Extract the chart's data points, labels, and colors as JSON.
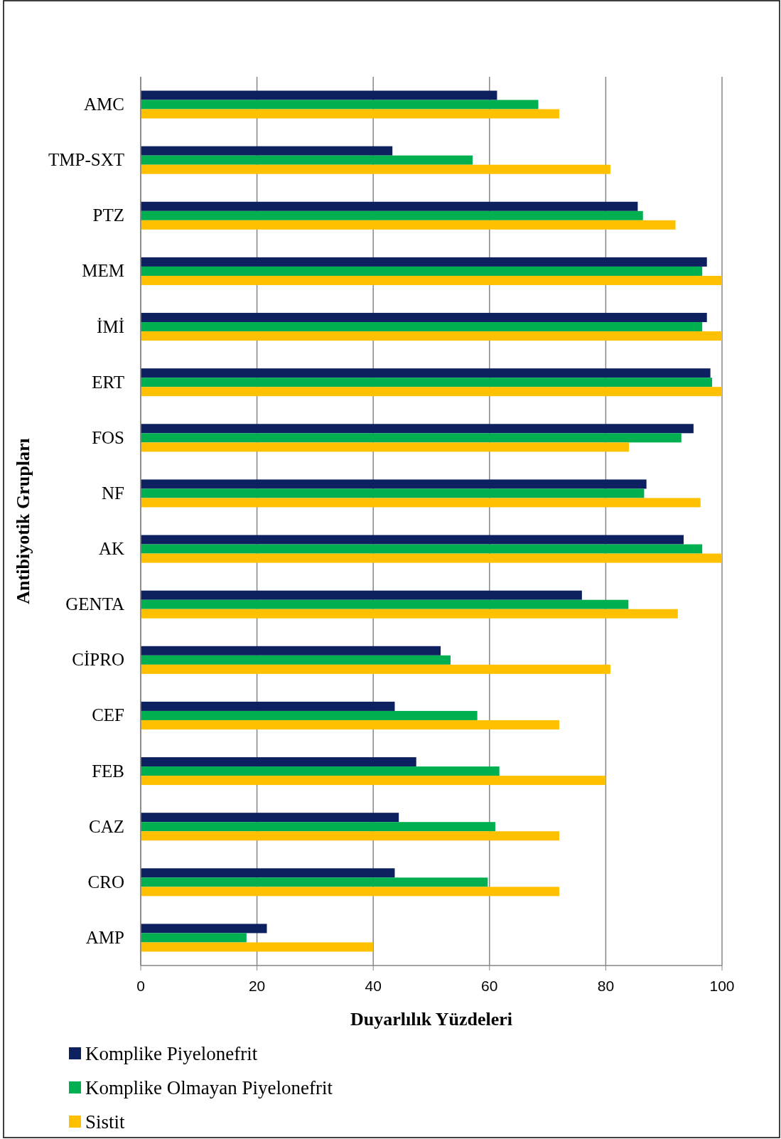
{
  "chart_data": {
    "type": "bar",
    "orientation": "horizontal",
    "xlabel": "Duyarlılık Yüzdeleri",
    "ylabel": "Antibiyotik Grupları",
    "categories": [
      "AMC",
      "TMP-SXT",
      "PTZ",
      "MEM",
      "İMİ",
      "ERT",
      "FOS",
      "NF",
      "AK",
      "GENTA",
      "CİPRO",
      "CEF",
      "FEB",
      "CAZ",
      "CRO",
      "AMP"
    ],
    "series": [
      {
        "name": "Komplike Piyelonefrit",
        "color": "#0d2060",
        "values": [
          61.3,
          43.3,
          85.5,
          97.4,
          97.4,
          98,
          95.1,
          87,
          93.4,
          75.9,
          51.6,
          43.7,
          47.4,
          44.4,
          43.7,
          21.7
        ]
      },
      {
        "name": "Komplike Olmayan Piyelonefrit",
        "color": "#00b050",
        "values": [
          68.4,
          57.1,
          86.4,
          96.6,
          96.6,
          98.3,
          93,
          86.6,
          96.6,
          83.9,
          53.3,
          57.9,
          61.7,
          61,
          59.7,
          18.2
        ]
      },
      {
        "name": "Sistit",
        "color": "#ffc000",
        "values": [
          72,
          80.8,
          92,
          100,
          100,
          100,
          84,
          96.3,
          100,
          92.4,
          80.8,
          72,
          80,
          72,
          72,
          40
        ]
      }
    ],
    "xlim": [
      0,
      100
    ],
    "xticks": [
      0,
      20,
      40,
      60,
      80,
      100
    ],
    "grid": "x",
    "legend": "bottom"
  }
}
